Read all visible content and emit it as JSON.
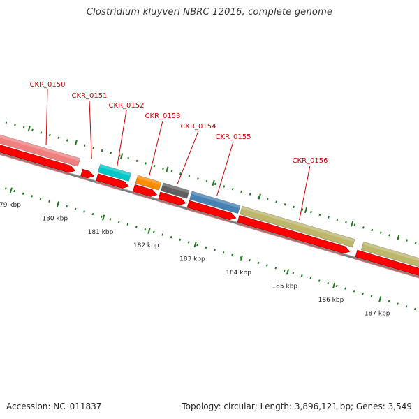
{
  "title": "Clostridium kluyveri NBRC 12016, complete genome",
  "footer": {
    "accession": "Accession: NC_011837",
    "summary": "Topology: circular; Length: 3,896,121 bp; Genes: 3,549"
  },
  "colors": {
    "backbone": "#7a7a7a",
    "cds": "#ff0000",
    "tick": "#1f7a1f",
    "label": "#cc0000"
  },
  "ticks": [
    {
      "label": "179 kbp"
    },
    {
      "label": "180 kbp"
    },
    {
      "label": "181 kbp"
    },
    {
      "label": "182 kbp"
    },
    {
      "label": "183 kbp"
    },
    {
      "label": "184 kbp"
    },
    {
      "label": "185 kbp"
    },
    {
      "label": "186 kbp"
    },
    {
      "label": "187 kbp"
    }
  ],
  "genes": [
    {
      "name": "CKR_0150",
      "color": "#f08080"
    },
    {
      "name": "CKR_0151",
      "color": ""
    },
    {
      "name": "CKR_0152",
      "color": "#00c8c8"
    },
    {
      "name": "CKR_0153",
      "color": "#ff8c00"
    },
    {
      "name": "CKR_0154",
      "color": "#606060"
    },
    {
      "name": "CKR_0155",
      "color": "#4682b4"
    },
    {
      "name": "CKR_0156",
      "color": "#bdb76b"
    }
  ]
}
